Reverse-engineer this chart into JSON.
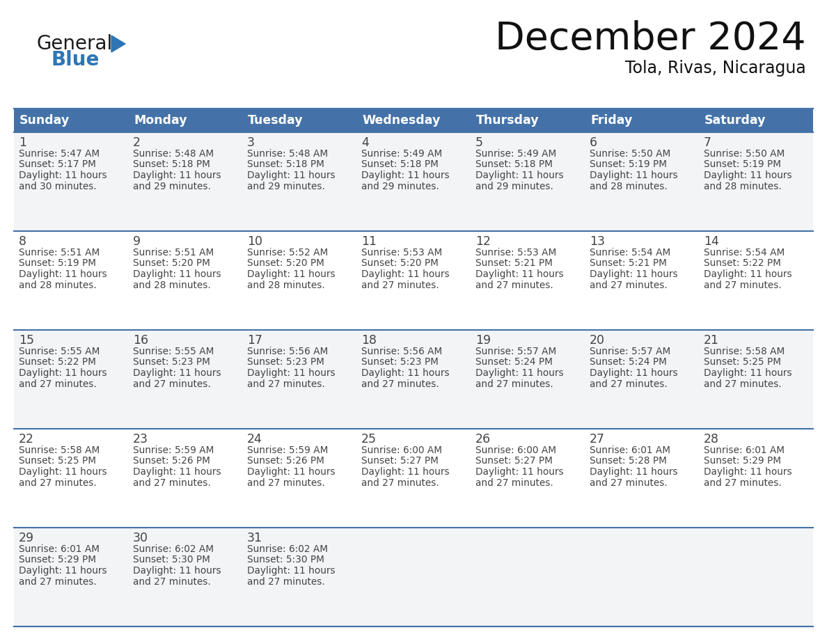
{
  "title": "December 2024",
  "subtitle": "Tola, Rivas, Nicaragua",
  "header_bg_color": "#4472a8",
  "header_text_color": "#ffffff",
  "grid_line_color": "#4472a8",
  "text_color": "#444444",
  "day_number_color": "#444444",
  "days_of_week": [
    "Sunday",
    "Monday",
    "Tuesday",
    "Wednesday",
    "Thursday",
    "Friday",
    "Saturday"
  ],
  "logo_black": "#1a1a1a",
  "logo_blue": "#2e75b6",
  "calendar_data": [
    [
      {
        "day": 1,
        "sunrise": "5:47 AM",
        "sunset": "5:17 PM",
        "daylight_hours": 11,
        "daylight_minutes": 30
      },
      {
        "day": 2,
        "sunrise": "5:48 AM",
        "sunset": "5:18 PM",
        "daylight_hours": 11,
        "daylight_minutes": 29
      },
      {
        "day": 3,
        "sunrise": "5:48 AM",
        "sunset": "5:18 PM",
        "daylight_hours": 11,
        "daylight_minutes": 29
      },
      {
        "day": 4,
        "sunrise": "5:49 AM",
        "sunset": "5:18 PM",
        "daylight_hours": 11,
        "daylight_minutes": 29
      },
      {
        "day": 5,
        "sunrise": "5:49 AM",
        "sunset": "5:18 PM",
        "daylight_hours": 11,
        "daylight_minutes": 29
      },
      {
        "day": 6,
        "sunrise": "5:50 AM",
        "sunset": "5:19 PM",
        "daylight_hours": 11,
        "daylight_minutes": 28
      },
      {
        "day": 7,
        "sunrise": "5:50 AM",
        "sunset": "5:19 PM",
        "daylight_hours": 11,
        "daylight_minutes": 28
      }
    ],
    [
      {
        "day": 8,
        "sunrise": "5:51 AM",
        "sunset": "5:19 PM",
        "daylight_hours": 11,
        "daylight_minutes": 28
      },
      {
        "day": 9,
        "sunrise": "5:51 AM",
        "sunset": "5:20 PM",
        "daylight_hours": 11,
        "daylight_minutes": 28
      },
      {
        "day": 10,
        "sunrise": "5:52 AM",
        "sunset": "5:20 PM",
        "daylight_hours": 11,
        "daylight_minutes": 28
      },
      {
        "day": 11,
        "sunrise": "5:53 AM",
        "sunset": "5:20 PM",
        "daylight_hours": 11,
        "daylight_minutes": 27
      },
      {
        "day": 12,
        "sunrise": "5:53 AM",
        "sunset": "5:21 PM",
        "daylight_hours": 11,
        "daylight_minutes": 27
      },
      {
        "day": 13,
        "sunrise": "5:54 AM",
        "sunset": "5:21 PM",
        "daylight_hours": 11,
        "daylight_minutes": 27
      },
      {
        "day": 14,
        "sunrise": "5:54 AM",
        "sunset": "5:22 PM",
        "daylight_hours": 11,
        "daylight_minutes": 27
      }
    ],
    [
      {
        "day": 15,
        "sunrise": "5:55 AM",
        "sunset": "5:22 PM",
        "daylight_hours": 11,
        "daylight_minutes": 27
      },
      {
        "day": 16,
        "sunrise": "5:55 AM",
        "sunset": "5:23 PM",
        "daylight_hours": 11,
        "daylight_minutes": 27
      },
      {
        "day": 17,
        "sunrise": "5:56 AM",
        "sunset": "5:23 PM",
        "daylight_hours": 11,
        "daylight_minutes": 27
      },
      {
        "day": 18,
        "sunrise": "5:56 AM",
        "sunset": "5:23 PM",
        "daylight_hours": 11,
        "daylight_minutes": 27
      },
      {
        "day": 19,
        "sunrise": "5:57 AM",
        "sunset": "5:24 PM",
        "daylight_hours": 11,
        "daylight_minutes": 27
      },
      {
        "day": 20,
        "sunrise": "5:57 AM",
        "sunset": "5:24 PM",
        "daylight_hours": 11,
        "daylight_minutes": 27
      },
      {
        "day": 21,
        "sunrise": "5:58 AM",
        "sunset": "5:25 PM",
        "daylight_hours": 11,
        "daylight_minutes": 27
      }
    ],
    [
      {
        "day": 22,
        "sunrise": "5:58 AM",
        "sunset": "5:25 PM",
        "daylight_hours": 11,
        "daylight_minutes": 27
      },
      {
        "day": 23,
        "sunrise": "5:59 AM",
        "sunset": "5:26 PM",
        "daylight_hours": 11,
        "daylight_minutes": 27
      },
      {
        "day": 24,
        "sunrise": "5:59 AM",
        "sunset": "5:26 PM",
        "daylight_hours": 11,
        "daylight_minutes": 27
      },
      {
        "day": 25,
        "sunrise": "6:00 AM",
        "sunset": "5:27 PM",
        "daylight_hours": 11,
        "daylight_minutes": 27
      },
      {
        "day": 26,
        "sunrise": "6:00 AM",
        "sunset": "5:27 PM",
        "daylight_hours": 11,
        "daylight_minutes": 27
      },
      {
        "day": 27,
        "sunrise": "6:01 AM",
        "sunset": "5:28 PM",
        "daylight_hours": 11,
        "daylight_minutes": 27
      },
      {
        "day": 28,
        "sunrise": "6:01 AM",
        "sunset": "5:29 PM",
        "daylight_hours": 11,
        "daylight_minutes": 27
      }
    ],
    [
      {
        "day": 29,
        "sunrise": "6:01 AM",
        "sunset": "5:29 PM",
        "daylight_hours": 11,
        "daylight_minutes": 27
      },
      {
        "day": 30,
        "sunrise": "6:02 AM",
        "sunset": "5:30 PM",
        "daylight_hours": 11,
        "daylight_minutes": 27
      },
      {
        "day": 31,
        "sunrise": "6:02 AM",
        "sunset": "5:30 PM",
        "daylight_hours": 11,
        "daylight_minutes": 27
      },
      null,
      null,
      null,
      null
    ]
  ]
}
